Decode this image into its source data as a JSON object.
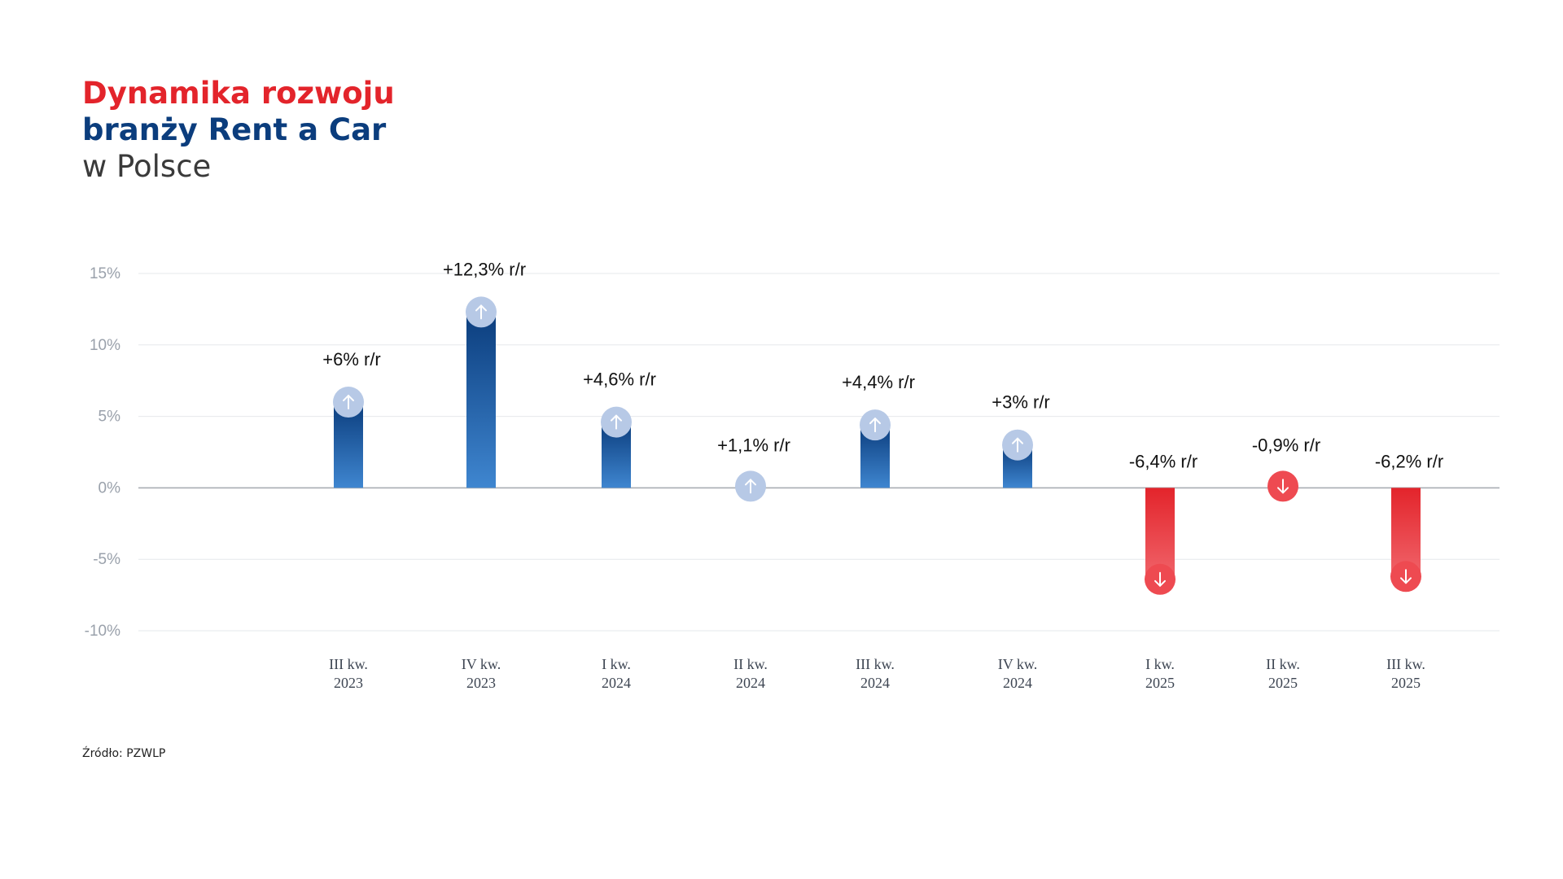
{
  "title": {
    "line1": "Dynamika rozwoju",
    "line2": "branży Rent a Car",
    "line3": "w Polsce"
  },
  "source": "Źródło: PZWLP",
  "colors": {
    "title_red": "#e3242b",
    "title_blue": "#0b3d7d",
    "positive_dark": "#0b3d7d",
    "positive_light": "#3f86d0",
    "negative_dark": "#e3242b",
    "negative_light": "#f0646a",
    "positive_marker": "#b7c9e6",
    "negative_marker": "#ee4a51"
  },
  "chart_data": {
    "type": "bar",
    "title": "Dynamika rozwoju branży Rent a Car w Polsce",
    "xlabel": "",
    "ylabel": "",
    "ylim": [
      -10,
      15
    ],
    "yticks": [
      15,
      10,
      5,
      0,
      -5,
      -10
    ],
    "ytick_labels": [
      "15%",
      "10%",
      "5%",
      "0%",
      "-5%",
      "-10%"
    ],
    "grid": true,
    "categories": [
      [
        "III kw.",
        "2023"
      ],
      [
        "IV kw.",
        "2023"
      ],
      [
        "I kw.",
        "2024"
      ],
      [
        "II kw.",
        "2024"
      ],
      [
        "III kw.",
        "2024"
      ],
      [
        "IV kw.",
        "2024"
      ],
      [
        "I kw.",
        "2025"
      ],
      [
        "II kw.",
        "2025"
      ],
      [
        "III kw.",
        "2025"
      ]
    ],
    "values": [
      6,
      12.3,
      4.6,
      1.1,
      4.4,
      3,
      -6.4,
      -0.9,
      -6.2
    ],
    "data_labels": [
      "+6% r/r",
      "+12,3% r/r",
      "+4,6% r/r",
      "+1,1% r/r",
      "+4,4% r/r",
      "+3% r/r",
      "-6,4% r/r",
      "-0,9% r/r",
      "-6,2% r/r"
    ]
  }
}
